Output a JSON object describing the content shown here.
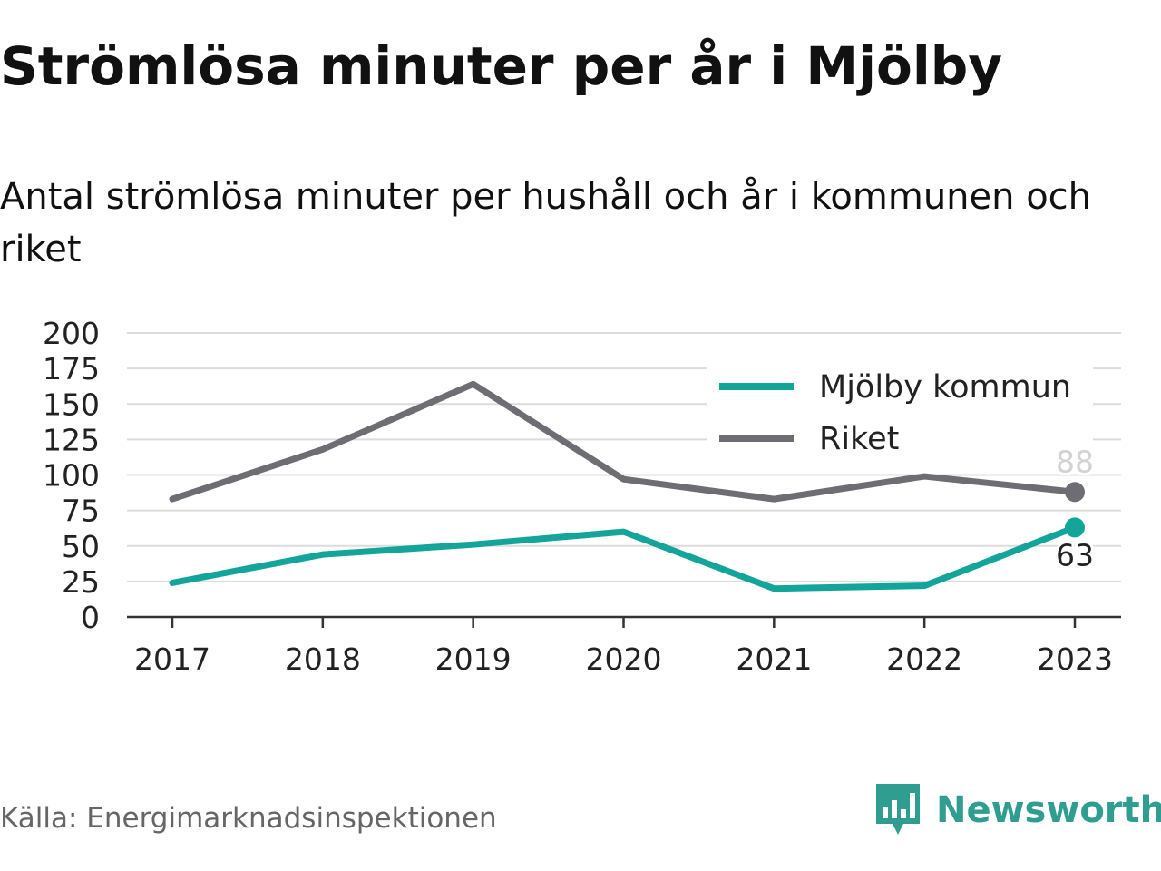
{
  "header": {
    "title": "Strömlösa minuter per år i Mjölby",
    "subtitle": "Antal strömlösa minuter per hushåll och år i kommunen och riket"
  },
  "footer": {
    "source": "Källa: Energimarknadsinspektionen",
    "brand": "Newsworthy",
    "brand_icon": "bar-chart-bubble-icon"
  },
  "chart_data": {
    "type": "line",
    "x": [
      "2017",
      "2018",
      "2019",
      "2020",
      "2021",
      "2022",
      "2023"
    ],
    "ylim": [
      0,
      200
    ],
    "yticks": [
      "0",
      "25",
      "50",
      "75",
      "100",
      "125",
      "150",
      "175",
      "200"
    ],
    "grid": true,
    "legend_position": "top-right",
    "series": [
      {
        "name": "Mjölby kommun",
        "color": "#13a49a",
        "values": [
          24,
          44,
          51,
          60,
          20,
          22,
          63
        ],
        "end_label": "63"
      },
      {
        "name": "Riket",
        "color": "#6e6d74",
        "values": [
          83,
          118,
          164,
          97,
          83,
          99,
          88
        ],
        "end_label": "88"
      }
    ]
  }
}
